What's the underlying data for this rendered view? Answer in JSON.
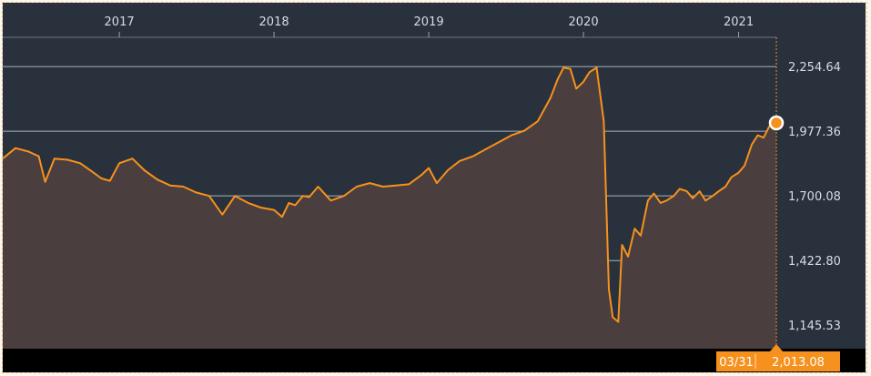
{
  "chart_data": {
    "type": "area",
    "title": "",
    "xlabel": "",
    "ylabel": "",
    "x_ticks": [
      "2017",
      "2018",
      "2019",
      "2020",
      "2021"
    ],
    "y_ticks": [
      "1,145.53",
      "1,422.80",
      "1,700.08",
      "1,977.36",
      "2,254.64"
    ],
    "y_tick_values": [
      1145.53,
      1422.8,
      1700.08,
      1977.36,
      2254.64
    ],
    "ylim": [
      1045,
      2380
    ],
    "xlim": [
      "2016-04-01",
      "2021-03-31"
    ],
    "grid": true,
    "series": [
      {
        "x": [
          "2016-04-01",
          "2016-05-01",
          "2016-06-01",
          "2016-06-25",
          "2016-07-10",
          "2016-08-01",
          "2016-09-01",
          "2016-10-01",
          "2016-11-01",
          "2016-11-20",
          "2016-12-10",
          "2017-01-01",
          "2017-02-01",
          "2017-03-01",
          "2017-04-01",
          "2017-05-01",
          "2017-06-01",
          "2017-07-01",
          "2017-08-01",
          "2017-09-01",
          "2017-10-01",
          "2017-11-01",
          "2017-12-01",
          "2018-01-01",
          "2018-01-20",
          "2018-02-05",
          "2018-02-20",
          "2018-03-10",
          "2018-03-25",
          "2018-04-15",
          "2018-05-15",
          "2018-06-15",
          "2018-07-15",
          "2018-08-15",
          "2018-09-15",
          "2018-10-15",
          "2018-11-15",
          "2018-12-15",
          "2019-01-01",
          "2019-01-20",
          "2019-02-15",
          "2019-03-15",
          "2019-04-15",
          "2019-05-15",
          "2019-06-15",
          "2019-07-15",
          "2019-08-15",
          "2019-09-15",
          "2019-10-15",
          "2019-11-01",
          "2019-11-15",
          "2019-12-01",
          "2019-12-15",
          "2020-01-01",
          "2020-01-15",
          "2020-02-01",
          "2020-02-18",
          "2020-03-01",
          "2020-03-10",
          "2020-03-23",
          "2020-04-01",
          "2020-04-15",
          "2020-05-01",
          "2020-05-15",
          "2020-06-01",
          "2020-06-15",
          "2020-07-01",
          "2020-07-15",
          "2020-08-01",
          "2020-08-15",
          "2020-09-01",
          "2020-09-15",
          "2020-10-01",
          "2020-10-15",
          "2020-11-01",
          "2020-11-15",
          "2020-12-01",
          "2020-12-15",
          "2021-01-01",
          "2021-01-15",
          "2021-02-01",
          "2021-02-15",
          "2021-03-01",
          "2021-03-15",
          "2021-03-31"
        ],
        "values": [
          1860,
          1905,
          1890,
          1870,
          1760,
          1860,
          1855,
          1840,
          1800,
          1775,
          1765,
          1840,
          1860,
          1810,
          1770,
          1745,
          1740,
          1715,
          1700,
          1620,
          1700,
          1670,
          1650,
          1640,
          1610,
          1670,
          1660,
          1700,
          1695,
          1740,
          1680,
          1700,
          1740,
          1755,
          1740,
          1745,
          1750,
          1790,
          1820,
          1755,
          1810,
          1850,
          1870,
          1900,
          1930,
          1960,
          1980,
          2020,
          2120,
          2200,
          2250,
          2245,
          2160,
          2190,
          2230,
          2250,
          2020,
          1300,
          1180,
          1160,
          1490,
          1440,
          1560,
          1530,
          1680,
          1710,
          1670,
          1680,
          1700,
          1730,
          1720,
          1690,
          1720,
          1680,
          1700,
          1720,
          1740,
          1780,
          1800,
          1830,
          1920,
          1960,
          1950,
          2000,
          2013.08
        ]
      }
    ],
    "last_value": {
      "date": "03/31",
      "value": "2,013.08"
    },
    "colors": {
      "line": "#f7911e",
      "area": "#4a3f3e",
      "plot_background": "#29313c",
      "gridline": "#aab2bb",
      "footer": "#000000",
      "readout": "#f7911e"
    }
  }
}
